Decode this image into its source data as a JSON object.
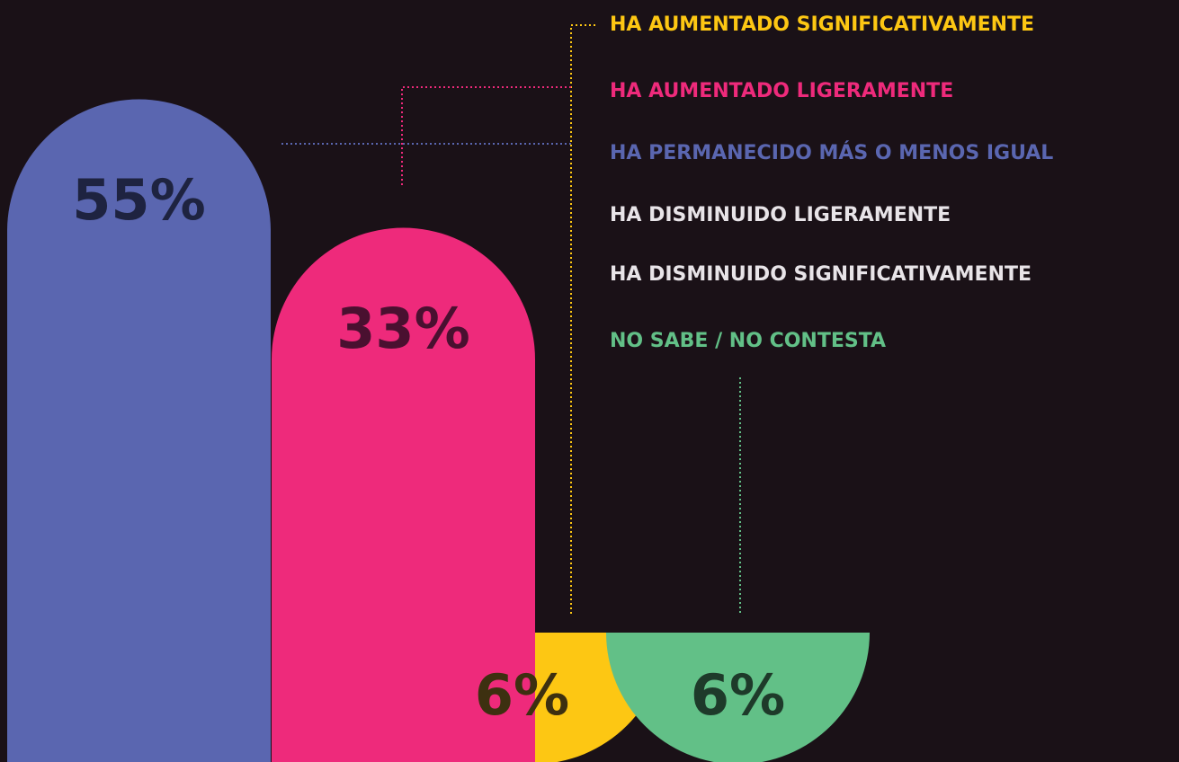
{
  "chart_data": {
    "type": "arch-bar",
    "categories": [
      "HA AUMENTADO SIGNIFICATIVAMENTE",
      "HA AUMENTADO LIGERAMENTE",
      "HA PERMANECIDO MÁS O MENOS IGUAL",
      "HA DISMINUIDO LIGERAMENTE",
      "HA DISMINUIDO SIGNIFICATIVAMENTE",
      "NO SABE / NO CONTESTA"
    ],
    "values": [
      6,
      33,
      55,
      null,
      null,
      6
    ],
    "value_labels": [
      "6%",
      "33%",
      "55%",
      null,
      null,
      "6%"
    ],
    "colors": [
      "#fdc713",
      "#ee2a7b",
      "#5a66b0",
      "#e8e4e8",
      "#e8e4e8",
      "#62c087"
    ]
  }
}
